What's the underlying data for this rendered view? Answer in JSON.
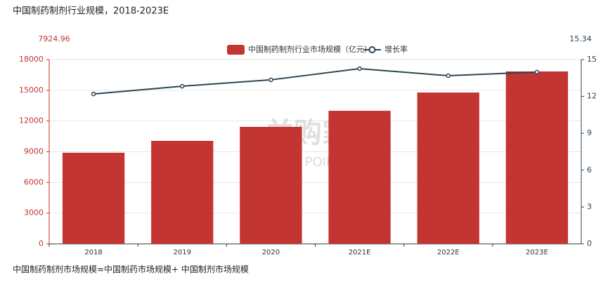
{
  "chart_data": {
    "type": "bar_line",
    "title": "中国制药制剂行业规模，2018-2023E",
    "y_top_note": "7924.96",
    "y2_top_note": "15.34",
    "footnote": "中国制药制剂市场规模=中国制药市场规模+ 中国制剂市场规模",
    "watermark": [
      "并购家",
      "行业报告 POIPO.CN"
    ],
    "categories": [
      "2018",
      "2019",
      "2020",
      "2021E",
      "2022E",
      "2023E"
    ],
    "series": [
      {
        "name": "中国制药制剂行业市场规模（亿元）",
        "type": "bar",
        "color": "#c23531",
        "values": [
          8900,
          10060,
          11430,
          13000,
          14780,
          16840
        ]
      },
      {
        "name": "增长率",
        "type": "line",
        "axis": "y2",
        "color": "#2f4554",
        "values": [
          12.2,
          12.83,
          13.35,
          14.26,
          13.69,
          13.98
        ]
      }
    ],
    "ylim": [
      0,
      18000
    ],
    "yticks": [
      0,
      3000,
      6000,
      9000,
      12000,
      15000,
      18000
    ],
    "y2lim": [
      0,
      15
    ],
    "y2ticks": [
      0,
      3,
      6,
      9,
      12,
      15
    ],
    "grid": true,
    "legend": "top"
  }
}
